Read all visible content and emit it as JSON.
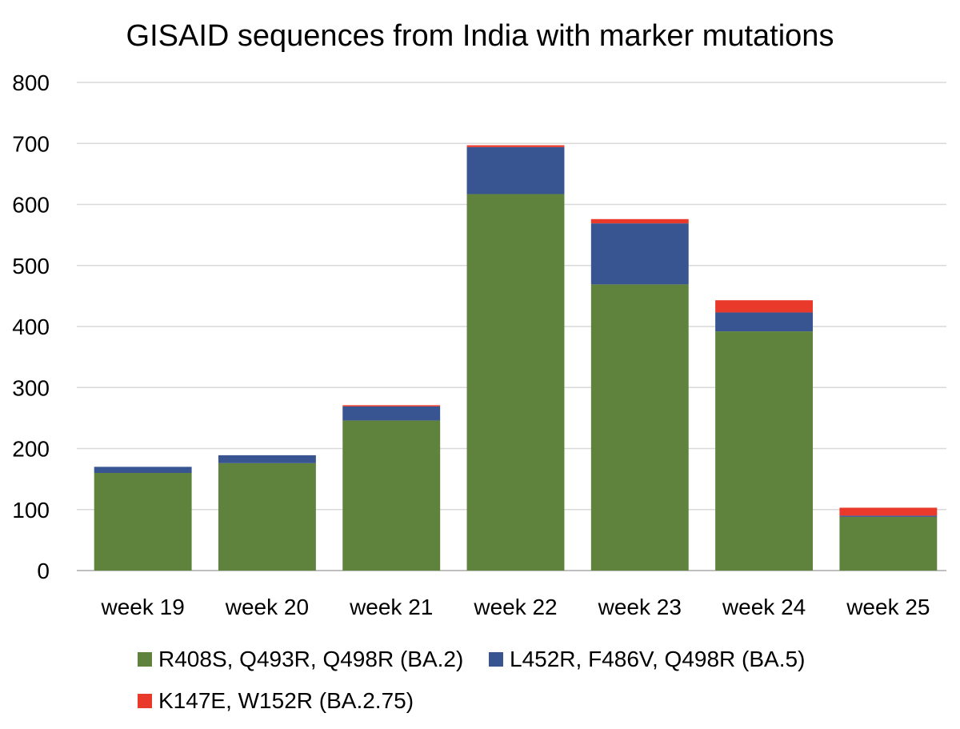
{
  "chart_data": {
    "type": "bar",
    "stacked": true,
    "title": "GISAID sequences from India with marker mutations",
    "xlabel": "",
    "ylabel": "",
    "categories": [
      "week 19",
      "week 20",
      "week 21",
      "week 22",
      "week 23",
      "week 24",
      "week 25"
    ],
    "series": [
      {
        "name": "R408S, Q493R, Q498R (BA.2)",
        "color": "#5f833d",
        "values": [
          160,
          176,
          246,
          617,
          469,
          392,
          88
        ]
      },
      {
        "name": "L452R, F486V, Q498R (BA.5)",
        "color": "#385592",
        "values": [
          10,
          13,
          23,
          77,
          100,
          31,
          2
        ]
      },
      {
        "name": "K147E, W152R (BA.2.75)",
        "color": "#e8392a",
        "values": [
          0,
          0,
          2,
          3,
          7,
          20,
          13
        ]
      }
    ],
    "ylim": [
      0,
      800
    ],
    "yticks": [
      0,
      100,
      200,
      300,
      400,
      500,
      600,
      700,
      800
    ],
    "grid": true,
    "legend_position": "bottom"
  }
}
